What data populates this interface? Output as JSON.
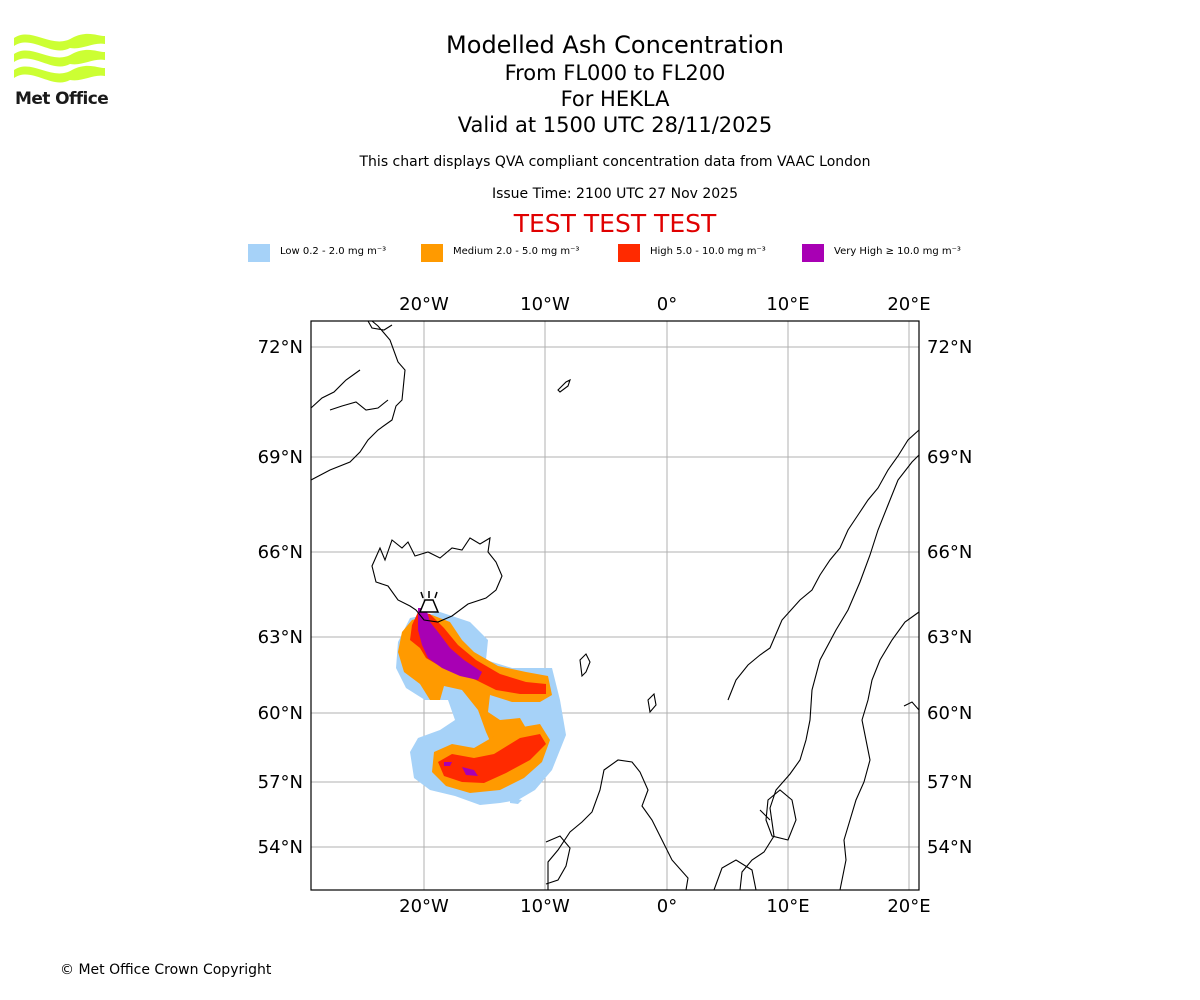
{
  "logo": {
    "text": "Met Office",
    "color": "#ccff33"
  },
  "titles": {
    "line1": "Modelled Ash Concentration",
    "line2": "From FL000 to FL200",
    "line3": "For HEKLA",
    "line4": "Valid at 1500 UTC 28/11/2025",
    "note": "This chart displays QVA compliant concentration data from VAAC London",
    "issue": "Issue Time: 2100 UTC 27 Nov 2025",
    "test": "TEST TEST TEST"
  },
  "legend": [
    {
      "label": "Low 0.2 - 2.0 mg m⁻³",
      "color": "#a6d2f8"
    },
    {
      "label": "Medium 2.0 - 5.0 mg m⁻³",
      "color": "#ff9a00"
    },
    {
      "label": "High 5.0 - 10.0 mg m⁻³",
      "color": "#ff2a00"
    },
    {
      "label": "Very High ≥ 10.0 mg m⁻³",
      "color": "#a800b4"
    }
  ],
  "map": {
    "lon_labels": [
      "20°W",
      "10°W",
      "0°",
      "10°E",
      "20°E"
    ],
    "lat_labels": [
      "72°N",
      "69°N",
      "66°N",
      "63°N",
      "60°N",
      "57°N",
      "54°N"
    ],
    "volcano": "HEKLA"
  },
  "copyright": "© Met Office Crown Copyright"
}
